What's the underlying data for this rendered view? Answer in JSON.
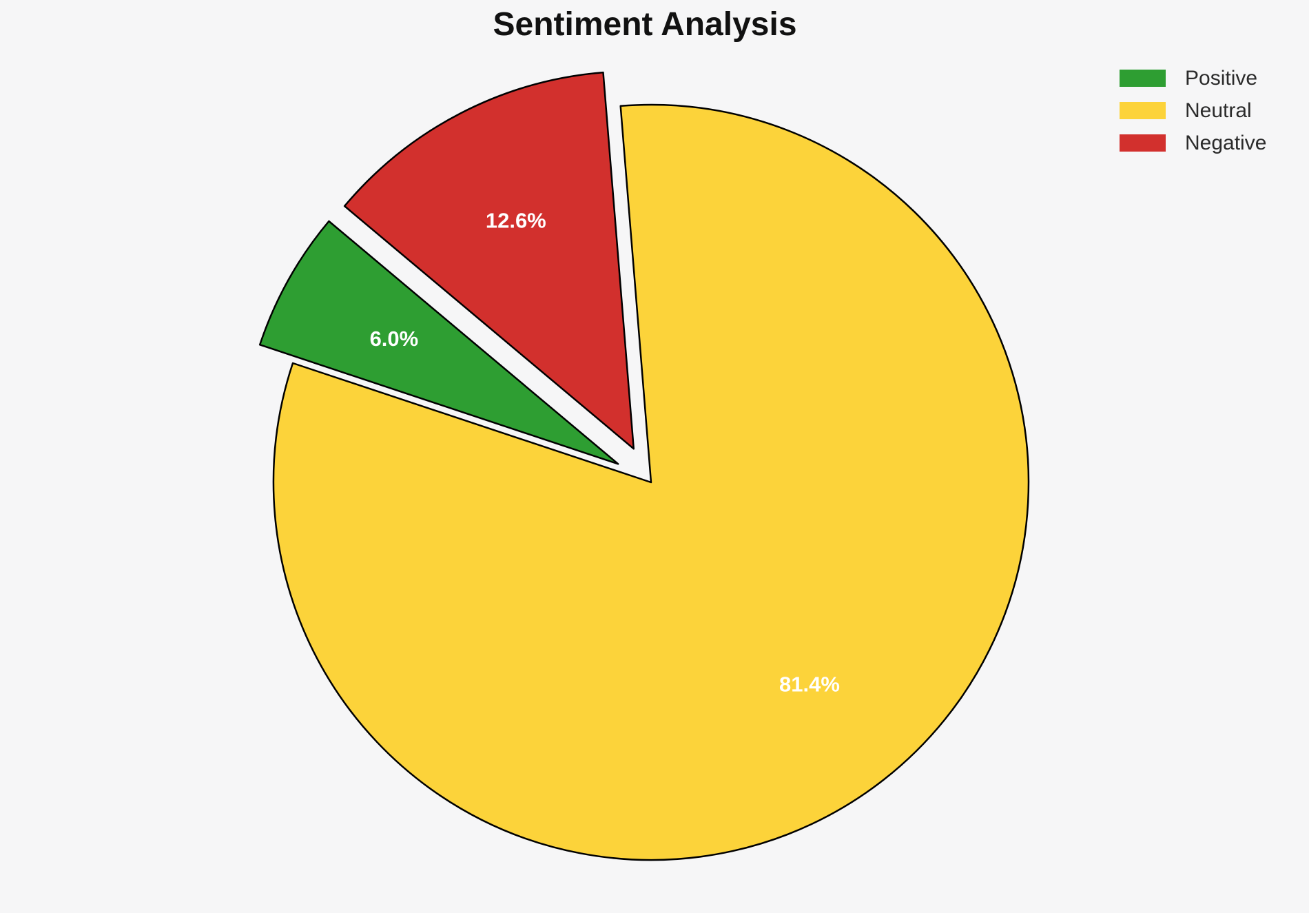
{
  "title": "Sentiment Analysis",
  "chart_data": {
    "type": "pie",
    "title": "Sentiment Analysis",
    "labels": [
      "Positive",
      "Neutral",
      "Negative"
    ],
    "values": [
      6.0,
      81.4,
      12.6
    ],
    "pct_labels": [
      "6.0%",
      "81.4%",
      "12.6%"
    ],
    "colors": [
      "#2e9e32",
      "#fcd33a",
      "#d2302d"
    ],
    "explode": [
      0.1,
      0,
      0.1
    ],
    "start_angle": 140,
    "direction": "counterclockwise",
    "pct_distance": 0.68,
    "label_color": "#ffffff",
    "edge_color": "#000000",
    "edge_width": 2.5,
    "center": [
      945,
      700
    ],
    "radius": 548,
    "legend_position": "upper right",
    "background": "#f6f6f7"
  },
  "legend": {
    "items": [
      {
        "label": "Positive",
        "color": "#2e9e32"
      },
      {
        "label": "Neutral",
        "color": "#fcd33a"
      },
      {
        "label": "Negative",
        "color": "#d2302d"
      }
    ]
  }
}
